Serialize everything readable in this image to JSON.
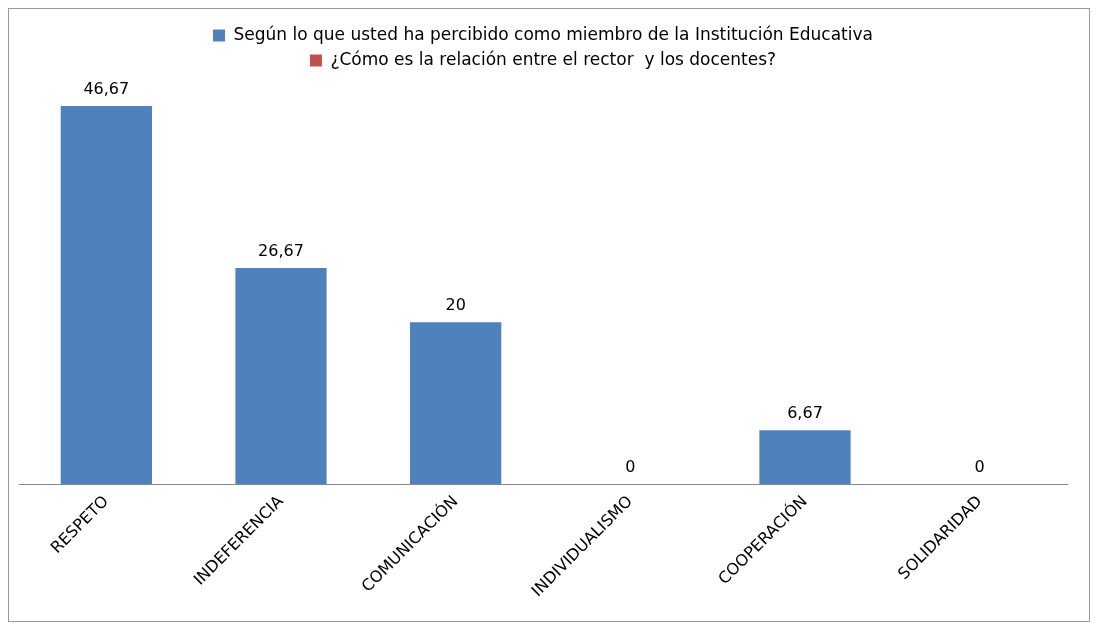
{
  "chart_data": {
    "type": "bar",
    "categories": [
      "RESPETO",
      "INDEFERENCIA",
      "COMUNICACIÓN",
      "INDIVIDUALISMO",
      "COOPERACIÓN",
      "SOLIDARIDAD"
    ],
    "series": [
      {
        "name": "Según lo que usted ha percibido como miembro de la Institución Educativa",
        "color": "#4f81bd",
        "values": [
          46.67,
          26.67,
          20,
          0,
          6.67,
          0
        ],
        "value_labels": [
          "46,67",
          "26,67",
          "20",
          "0",
          "6,67",
          "0"
        ]
      },
      {
        "name": "¿Cómo es la relación entre el rector  y los docentes?",
        "color": "#c0504d",
        "values": [
          null,
          null,
          null,
          null,
          null,
          null
        ]
      }
    ],
    "legend": "top",
    "grid": false,
    "tick_labels": "x"
  }
}
